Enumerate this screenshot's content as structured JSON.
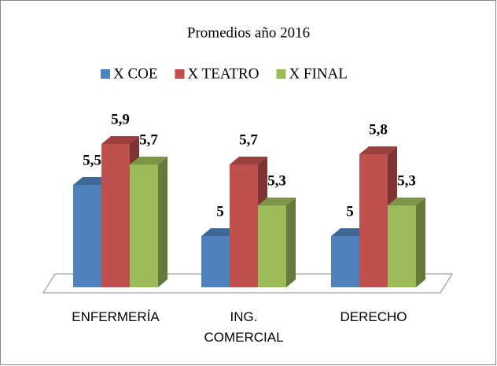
{
  "chart_data": {
    "type": "bar3d",
    "title": "Promedios año 2016",
    "categories": [
      "ENFERMERÍA",
      "ING. COMERCIAL",
      "DERECHO"
    ],
    "series": [
      {
        "name": "X COE",
        "color": "#4f81bd",
        "values": [
          5.5,
          5,
          5
        ],
        "value_labels": [
          "5,5",
          "5",
          "5"
        ]
      },
      {
        "name": "X TEATRO",
        "color": "#c0504d",
        "values": [
          5.9,
          5.7,
          5.8
        ],
        "value_labels": [
          "5,9",
          "5,7",
          "5,8"
        ]
      },
      {
        "name": "X FINAL",
        "color": "#9bbb59",
        "values": [
          5.7,
          5.3,
          5.3
        ],
        "value_labels": [
          "5,7",
          "5,3",
          "5,3"
        ]
      }
    ],
    "ylim": [
      4.5,
      6
    ],
    "legend": "top"
  }
}
